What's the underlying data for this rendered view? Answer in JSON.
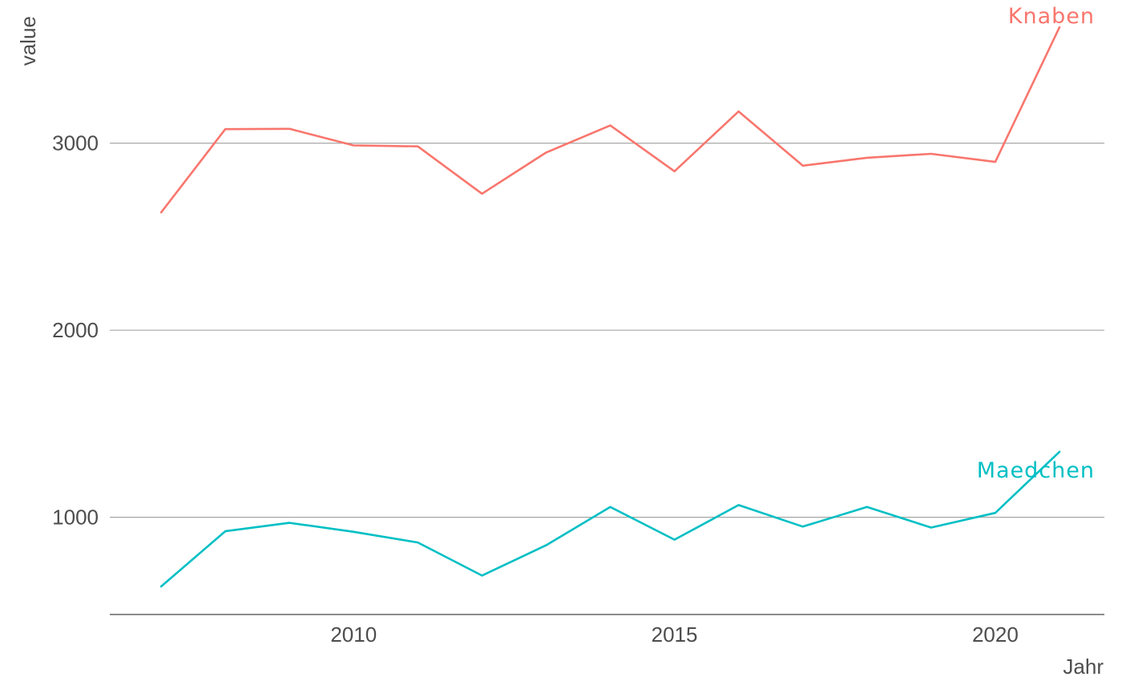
{
  "chart_data": {
    "type": "line",
    "xlabel": "Jahr",
    "ylabel": "value",
    "x": [
      2007,
      2008,
      2009,
      2010,
      2011,
      2012,
      2013,
      2014,
      2015,
      2016,
      2017,
      2018,
      2019,
      2020,
      2021
    ],
    "xlim": [
      2006.2,
      2021.7
    ],
    "ylim": [
      480,
      3680
    ],
    "x_ticks": [
      2010,
      2015,
      2020
    ],
    "y_ticks": [
      1000,
      2000,
      3000
    ],
    "grid": "horizontal major",
    "legend": "direct labels at line ends",
    "series": [
      {
        "name": "Knaben",
        "color": "#F8766D",
        "values": [
          2630,
          3075,
          3077,
          2988,
          2983,
          2730,
          2950,
          3095,
          2850,
          3170,
          2880,
          2922,
          2943,
          2900,
          3620
        ]
      },
      {
        "name": "Maedchen",
        "color": "#00BFC4",
        "values": [
          630,
          925,
          970,
          922,
          865,
          688,
          850,
          1055,
          880,
          1065,
          950,
          1055,
          945,
          1023,
          1350
        ]
      }
    ]
  }
}
